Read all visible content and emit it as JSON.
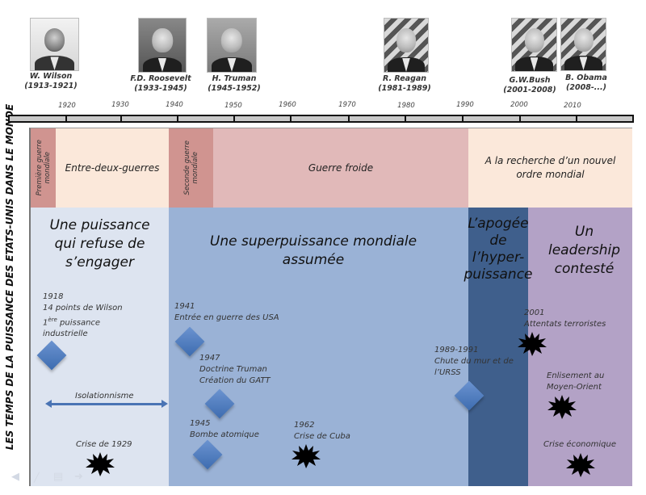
{
  "side_title": "LES TEMPS DE LA PUISSANCE DES ETATS-UNIS DANS LE MONDE",
  "presidents": [
    {
      "name": "W. Wilson",
      "term": "(1913-1921)"
    },
    {
      "name": "F.D. Roosevelt",
      "term": "(1933-1945)"
    },
    {
      "name": "H. Truman",
      "term": "(1945-1952)"
    },
    {
      "name": "R. Reagan",
      "term": "(1981-1989)"
    },
    {
      "name": "G.W.Bush",
      "term": "(2001-2008)"
    },
    {
      "name": "B. Obama",
      "term": "(2008-...)"
    }
  ],
  "timeline_years": [
    "1920",
    "1930",
    "1940",
    "1950",
    "1960",
    "1970",
    "1980",
    "1990",
    "2000",
    "2010"
  ],
  "periods": [
    {
      "label": "Première guerre mondiale",
      "line1": "Première guerre",
      "line2": "mondiale",
      "color": "#d09490"
    },
    {
      "label": "Entre-deux-guerres",
      "color": "#fbe8da"
    },
    {
      "label": "Seconde guerre mondiale",
      "line1": "Seconde guerre",
      "line2": "mondiale",
      "color": "#d09490"
    },
    {
      "label": "Guerre froide",
      "color": "#e1b9b9"
    },
    {
      "label": "A la recherche d'un nouvel ordre mondial",
      "line1": "A la recherche d’un nouvel",
      "line2": "ordre mondial",
      "color": "#fbe8da"
    }
  ],
  "phases": [
    {
      "title_lines": [
        "Une puissance",
        "qui refuse de",
        "s’engager"
      ],
      "color": "#dde4f0"
    },
    {
      "title_lines": [
        "Une superpuissance mondiale",
        "assumée"
      ],
      "color": "#9ab2d6"
    },
    {
      "title_lines": [
        "L’apogée",
        "de",
        "l’hyper-",
        "puissance"
      ],
      "color": "#3f5f8c"
    },
    {
      "title_lines": [
        "Un",
        "leadership",
        "contesté"
      ],
      "color": "#b3a2c6"
    }
  ],
  "events": {
    "wilson": {
      "year": "1918",
      "line1": "14 points de Wilson",
      "line2_main": "1",
      "line2_sup": "ère",
      "line2_rest": " puissance",
      "line3": "industrielle"
    },
    "isolationnisme": "Isolationnisme",
    "crise1929": "Crise de 1929",
    "guerre1941": {
      "year": "1941",
      "text": "Entrée en guerre des USA"
    },
    "truman1947": {
      "year": "1947",
      "line1": "Doctrine Truman",
      "line2": "Création du GATT"
    },
    "bombe1945": {
      "year": "1945",
      "text": "Bombe atomique"
    },
    "cuba1962": {
      "year": "1962",
      "text": "Crise de Cuba"
    },
    "mur1989": {
      "year": "1989-1991",
      "line1": "Chute du mur et de",
      "line2": "l’URSS"
    },
    "attentats2001": {
      "year": "2001",
      "text": "Attentats terroristes"
    },
    "enlisement": {
      "line1": "Enlisement au",
      "line2": "Moyen-Orient"
    },
    "crise_eco": "Crise économique"
  },
  "colors": {
    "diamond": "#4a78bd",
    "burst": "#000000",
    "arrow": "#4a74b4"
  }
}
